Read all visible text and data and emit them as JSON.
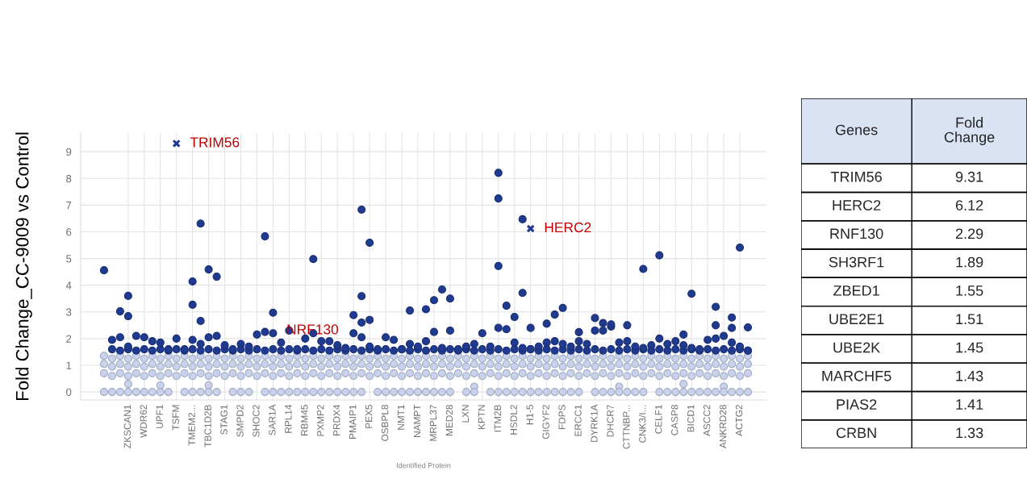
{
  "chart_data": [
    {
      "type": "scatter",
      "xlabel": "Identified Protein",
      "ylabel": "Fold Change_CC-9009 vs Control",
      "categories": [
        null,
        null,
        null,
        "ZKSCAN1",
        null,
        "WDR62",
        null,
        "UPF1",
        null,
        "TSFM",
        null,
        "TMEM2...",
        null,
        "TBC1D2B",
        null,
        "STAG1",
        null,
        "SMPD2",
        null,
        "SHOC2",
        null,
        "SAR1A",
        null,
        "RPL14",
        null,
        "RBM45",
        null,
        "PXMP2",
        null,
        "PRDX4",
        null,
        "PMAIP1",
        null,
        "PEX5",
        null,
        "OSBPL8",
        null,
        "NMT1",
        null,
        "NAMPT",
        null,
        "MRPL37",
        null,
        "MED28",
        null,
        "LXN",
        null,
        "KPTN",
        null,
        "ITM2B",
        null,
        "HSDL2",
        null,
        "H1-5",
        null,
        "GIGYF2",
        null,
        "FDPS",
        null,
        "ERCC1",
        null,
        "DYRK1A",
        null,
        "DHCR7",
        null,
        "CTTNBP...",
        null,
        "CNK3/I...",
        null,
        "CELF1",
        null,
        "CASP8",
        null,
        "BICD1",
        null,
        "ASCC2",
        null,
        "ANKRD28",
        null,
        "ACTG2",
        null
      ],
      "ylim": [
        -0.3,
        9.7
      ],
      "yticks": [
        0,
        1,
        2,
        3,
        4,
        5,
        6,
        7,
        8,
        9
      ],
      "grid": true,
      "marker": "circle",
      "series": [
        {
          "color": "#c8d2ec",
          "values": [
            1.35,
            1.25,
            1.35,
            1.25,
            1.35,
            1.25,
            1.35,
            1.25,
            1.35,
            1.25,
            1.35,
            1.25,
            1.35,
            1.25,
            1.35,
            1.25,
            1.35,
            1.25,
            1.35,
            1.25,
            1.35,
            1.25,
            1.35,
            1.25,
            1.35,
            1.25,
            1.35,
            1.25,
            1.35,
            1.25,
            1.35,
            1.25,
            1.35,
            1.25,
            1.35,
            1.25,
            1.35,
            1.25,
            1.35,
            1.25,
            1.35,
            1.25,
            1.35,
            1.25,
            1.35,
            1.25,
            1.35,
            1.25,
            1.35,
            1.25,
            1.35,
            1.25,
            1.35,
            1.25,
            1.35,
            1.25,
            1.35,
            1.25,
            1.35,
            1.25,
            1.35,
            1.25,
            1.35,
            1.25,
            1.35,
            1.25,
            1.35,
            1.25,
            1.35,
            1.25,
            1.35,
            1.25,
            1.35,
            1.25,
            1.35,
            1.25,
            1.35,
            1.25,
            1.35,
            1.25,
            1.35
          ]
        },
        {
          "color": "#c8d2ec",
          "values": [
            1.05,
            0.95,
            1.05,
            0.95,
            1.05,
            0.95,
            1.05,
            0.95,
            1.05,
            0.95,
            1.05,
            0.95,
            1.05,
            0.95,
            1.05,
            0.95,
            1.05,
            0.95,
            1.05,
            0.95,
            1.05,
            0.95,
            1.05,
            0.95,
            1.05,
            0.95,
            1.05,
            0.95,
            1.05,
            0.95,
            1.05,
            0.95,
            1.05,
            0.95,
            1.05,
            0.95,
            1.05,
            0.95,
            1.05,
            0.95,
            1.05,
            0.95,
            1.05,
            0.95,
            1.05,
            0.95,
            1.05,
            0.95,
            1.05,
            0.95,
            1.05,
            0.95,
            1.05,
            0.95,
            1.05,
            0.95,
            1.05,
            0.95,
            1.05,
            0.95,
            1.05,
            0.95,
            1.05,
            0.95,
            1.05,
            0.95,
            1.05,
            0.95,
            1.05,
            0.95,
            1.05,
            0.95,
            1.05,
            0.95,
            1.05,
            0.95,
            1.05,
            0.95,
            1.05,
            0.95,
            1.05
          ]
        },
        {
          "color": "#c8d2ec",
          "values": [
            0.7,
            0.6,
            0.7,
            0.6,
            0.7,
            0.6,
            0.7,
            0.6,
            0.7,
            0.6,
            0.7,
            0.6,
            0.7,
            0.6,
            0.7,
            0.6,
            0.7,
            0.6,
            0.7,
            0.6,
            0.7,
            0.6,
            0.7,
            0.6,
            0.7,
            0.6,
            0.7,
            0.6,
            0.7,
            0.6,
            0.7,
            0.6,
            0.7,
            0.6,
            0.7,
            0.6,
            0.7,
            0.6,
            0.7,
            0.6,
            0.7,
            0.6,
            0.7,
            0.6,
            0.7,
            0.6,
            0.7,
            0.6,
            0.7,
            0.6,
            0.7,
            0.6,
            0.7,
            0.6,
            0.7,
            0.6,
            0.7,
            0.6,
            0.7,
            0.6,
            0.7,
            0.6,
            0.7,
            0.6,
            0.7,
            0.6,
            0.7,
            0.6,
            0.7,
            0.6,
            0.7,
            0.6,
            0.7,
            0.6,
            0.7,
            0.6,
            0.7,
            0.6,
            0.7,
            0.6,
            0.7
          ]
        },
        {
          "color": "#c8d2ec",
          "values": [
            null,
            null,
            null,
            0.3,
            null,
            null,
            null,
            0.25,
            null,
            null,
            null,
            null,
            null,
            0.25,
            null,
            null,
            null,
            null,
            null,
            null,
            null,
            null,
            null,
            null,
            null,
            null,
            null,
            null,
            null,
            null,
            null,
            null,
            null,
            null,
            null,
            null,
            null,
            null,
            null,
            null,
            null,
            null,
            null,
            null,
            null,
            null,
            0.2,
            null,
            null,
            null,
            null,
            null,
            null,
            null,
            null,
            null,
            null,
            null,
            null,
            null,
            null,
            null,
            null,
            null,
            0.2,
            null,
            null,
            null,
            null,
            null,
            null,
            null,
            0.3,
            null,
            null,
            null,
            null,
            0.2,
            null,
            null,
            null
          ]
        },
        {
          "color": "#c8d2ec",
          "values": [
            0,
            0,
            0,
            0,
            0,
            0,
            0,
            0,
            0,
            null,
            0,
            0,
            0,
            0,
            0,
            null,
            0,
            0,
            0,
            null,
            0,
            0,
            0,
            0,
            0,
            0,
            0,
            0,
            0,
            0,
            0,
            0,
            0,
            null,
            0,
            0,
            0,
            0,
            0,
            0,
            0,
            0,
            0,
            0,
            null,
            0,
            0,
            null,
            0,
            0,
            0,
            0,
            0,
            0,
            0,
            0,
            0,
            0,
            0,
            0,
            null,
            0,
            0,
            0,
            0,
            0,
            0,
            0,
            null,
            0,
            0,
            0,
            0,
            0,
            0,
            0,
            0,
            0,
            0,
            0,
            0
          ]
        },
        {
          "color": "#1f3a8f",
          "values": [
            null,
            1.6,
            1.55,
            1.6,
            1.55,
            1.6,
            1.55,
            1.6,
            1.55,
            1.6,
            1.55,
            1.6,
            1.55,
            1.6,
            1.55,
            1.6,
            1.55,
            1.6,
            1.55,
            1.6,
            1.55,
            1.6,
            1.55,
            1.6,
            1.55,
            1.6,
            1.55,
            1.6,
            1.55,
            1.6,
            1.55,
            1.6,
            1.55,
            1.6,
            1.55,
            1.6,
            1.55,
            1.6,
            1.55,
            1.6,
            1.55,
            1.6,
            1.55,
            1.6,
            1.55,
            1.6,
            1.55,
            1.6,
            1.55,
            1.6,
            1.55,
            1.6,
            1.55,
            1.6,
            1.55,
            1.6,
            1.55,
            1.6,
            1.55,
            1.6,
            1.55,
            1.6,
            1.55,
            1.6,
            1.55,
            1.6,
            1.55,
            1.6,
            1.55,
            1.6,
            1.55,
            1.6,
            1.55,
            1.6,
            1.55,
            1.6,
            1.55,
            1.6,
            1.55,
            1.6,
            1.55
          ]
        },
        {
          "color": "#1f3a8f",
          "values": [
            null,
            1.95,
            2.05,
            1.7,
            2.1,
            2.05,
            1.9,
            1.85,
            1.6,
            2.0,
            1.6,
            1.95,
            1.8,
            2.05,
            2.1,
            1.75,
            1.6,
            1.8,
            1.7,
            2.15,
            2.25,
            2.2,
            1.85,
            2.3,
            1.6,
            2.0,
            2.2,
            1.9,
            1.9,
            1.75,
            1.65,
            2.2,
            2.05,
            1.7,
            1.6,
            2.05,
            1.95,
            1.6,
            1.8,
            1.7,
            1.9,
            2.25,
            1.65,
            2.3,
            1.6,
            1.7,
            1.8,
            2.2,
            1.7,
            2.4,
            2.35,
            1.85,
            1.65,
            1.6,
            1.7,
            1.85,
            1.9,
            1.8,
            1.7,
            1.9,
            1.8,
            2.3,
            2.3,
            2.45,
            1.85,
            1.9,
            1.7,
            1.65,
            1.75,
            2.0,
            1.8,
            1.9,
            1.75,
            1.65,
            1.6,
            1.95,
            2.0,
            2.1,
            1.85,
            1.7,
            1.55
          ]
        },
        {
          "color": "#1f3a8f",
          "values": [
            4.56,
            null,
            3.02,
            3.6,
            null,
            null,
            null,
            null,
            null,
            null,
            null,
            4.14,
            6.31,
            4.59,
            4.32,
            null,
            null,
            null,
            null,
            null,
            5.83,
            2.97,
            null,
            null,
            null,
            null,
            4.98,
            null,
            null,
            null,
            null,
            2.88,
            6.83,
            5.59,
            null,
            null,
            null,
            null,
            3.05,
            null,
            3.1,
            3.44,
            3.84,
            3.5,
            null,
            null,
            null,
            null,
            null,
            8.21,
            3.23,
            2.81,
            6.47,
            2.4,
            null,
            2.56,
            2.9,
            3.15,
            null,
            2.24,
            null,
            2.77,
            2.58,
            2.53,
            null,
            2.5,
            null,
            4.61,
            null,
            5.12,
            null,
            null,
            2.15,
            3.68,
            null,
            null,
            3.19,
            null,
            2.79,
            5.41,
            2.42
          ]
        },
        {
          "color": "#1f3a8f",
          "values": [
            null,
            null,
            null,
            2.84,
            null,
            null,
            null,
            null,
            null,
            null,
            null,
            3.27,
            2.66,
            null,
            null,
            null,
            null,
            null,
            null,
            null,
            null,
            null,
            null,
            null,
            null,
            null,
            null,
            null,
            null,
            null,
            null,
            null,
            3.59,
            2.7,
            null,
            null,
            null,
            null,
            null,
            null,
            null,
            null,
            null,
            null,
            null,
            null,
            null,
            null,
            null,
            7.25,
            null,
            null,
            3.71,
            null,
            null,
            null,
            null,
            null,
            null,
            null,
            null,
            null,
            null,
            null,
            null,
            null,
            null,
            null,
            null,
            null,
            null,
            null,
            null,
            null,
            null,
            null,
            2.5,
            null,
            2.4,
            null,
            null
          ]
        },
        {
          "color": "#1f3a8f",
          "values": [
            null,
            null,
            null,
            null,
            null,
            null,
            null,
            null,
            null,
            null,
            null,
            null,
            null,
            null,
            null,
            null,
            null,
            null,
            null,
            null,
            null,
            null,
            null,
            null,
            null,
            null,
            null,
            null,
            null,
            null,
            null,
            null,
            2.6,
            null,
            null,
            null,
            null,
            null,
            null,
            null,
            null,
            null,
            null,
            null,
            null,
            null,
            null,
            null,
            null,
            4.72,
            null,
            null,
            null,
            null,
            null,
            null,
            null,
            null,
            null,
            null,
            null,
            null,
            null,
            null,
            null,
            null,
            null,
            null,
            null,
            null,
            null,
            null,
            null,
            null,
            null,
            null,
            null,
            null,
            null,
            null,
            null
          ]
        },
        {
          "color": "#1f3a8f",
          "marker": "cross",
          "values": [
            null,
            null,
            null,
            null,
            null,
            null,
            null,
            null,
            null,
            9.31,
            null,
            null,
            null,
            null,
            null,
            null,
            null,
            null,
            null,
            null,
            null,
            null,
            null,
            null,
            null,
            null,
            null,
            null,
            null,
            null,
            null,
            null,
            null,
            null,
            null,
            null,
            null,
            null,
            null,
            null,
            null,
            null,
            null,
            null,
            null,
            null,
            null,
            null,
            null,
            null,
            null,
            null,
            null,
            6.12,
            null,
            null,
            null,
            null,
            null,
            null,
            null,
            null,
            null,
            null,
            null,
            null,
            null,
            null,
            null,
            null,
            null,
            null,
            null,
            null,
            null,
            null,
            null,
            null,
            null,
            null,
            null
          ]
        }
      ],
      "annotations": [
        {
          "text": "TRIM56",
          "x": "TSFM",
          "y": 9.31
        },
        {
          "text": "HERC2",
          "x": "H1-5",
          "y": 6.12
        },
        {
          "text": "NRF130",
          "x": "SAR1A",
          "y": 2.3
        }
      ]
    },
    {
      "type": "other",
      "xlabel": "Genes",
      "ylabel": "Fold Change",
      "categories": [
        "TRIM56",
        "HERC2",
        "RNF130",
        "SH3RF1",
        "ZBED1",
        "UBE2E1",
        "UBE2K",
        "MARCHF5",
        "PIAS2",
        "CRBN"
      ],
      "values": [
        9.31,
        6.12,
        2.29,
        1.89,
        1.55,
        1.51,
        1.45,
        1.43,
        1.41,
        1.33
      ],
      "data_labels": true
    }
  ]
}
